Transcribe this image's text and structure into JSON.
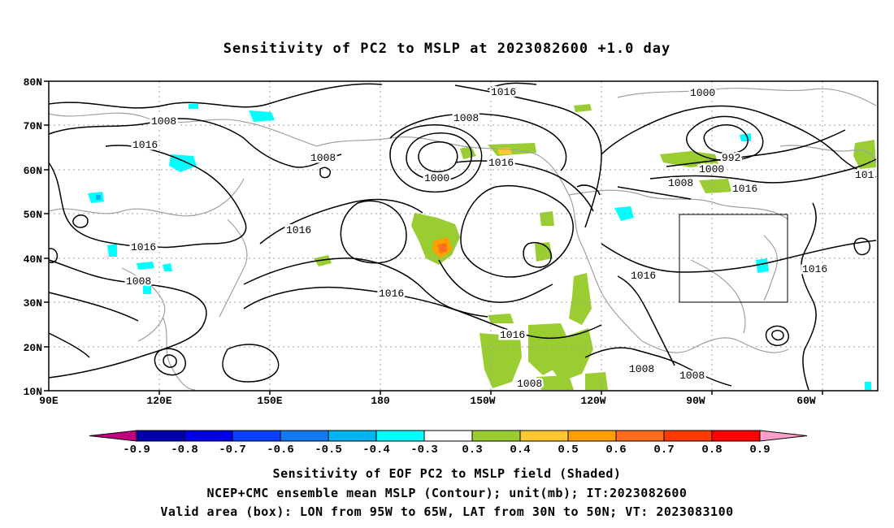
{
  "title": "Sensitivity of PC2 to MSLP at 2023082600 +1.0 day",
  "lat_labels": [
    "80N",
    "70N",
    "60N",
    "50N",
    "40N",
    "30N",
    "20N",
    "10N"
  ],
  "lon_labels": [
    "90E",
    "120E",
    "150E",
    "180",
    "150W",
    "120W",
    "90W",
    "60W"
  ],
  "contour_labels": {
    "l1016_top": "1016",
    "l1000_top": "1000",
    "l1008_a": "1008",
    "l1016_a": "1016",
    "l1008_b": "1008",
    "l1008_c": "1008",
    "l1016_b": "1016",
    "l1000_b": "1000",
    "l992": "992",
    "l1000_c": "1000",
    "l1008_d": "1008",
    "l1016_c": "1016",
    "l101": "101",
    "l1016_d": "1016",
    "l1016_e": "1016",
    "l1016_f": "1016",
    "l1016_g": "1016",
    "l1008_e": "1008",
    "l1016_h": "1016",
    "l1016_i": "1016",
    "l1008_f": "1008",
    "l1008_g": "1008",
    "l1008_h": "1008"
  },
  "colorbar": {
    "labels": [
      "-0.9",
      "-0.8",
      "-0.7",
      "-0.6",
      "-0.5",
      "-0.4",
      "-0.3",
      "0.3",
      "0.4",
      "0.5",
      "0.6",
      "0.7",
      "0.8",
      "0.9"
    ],
    "colors": [
      "#0000a8",
      "#0000e6",
      "#0a40ff",
      "#1478f0",
      "#00b4f0",
      "#00ffff",
      "#ffffff",
      "#9acd32",
      "#ffc832",
      "#ffa000",
      "#ff6e1e",
      "#ff3c00",
      "#ff0000"
    ],
    "left_arrow_color": "#c0007c",
    "right_arrow_color": "#ffa0c8"
  },
  "caption": {
    "line1": "Sensitivity of EOF PC2 to MSLP field (Shaded)",
    "line2": "NCEP+CMC ensemble mean MSLP (Contour); unit(mb); IT:2023082600",
    "line3": "Valid area (box): LON from 95W to 65W, LAT from 30N to 50N; VT: 2023083100"
  }
}
